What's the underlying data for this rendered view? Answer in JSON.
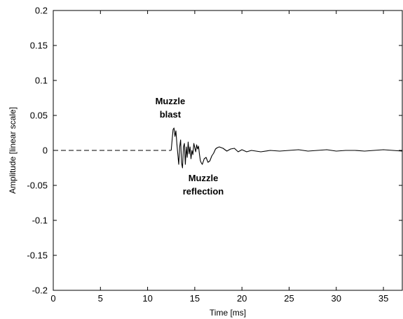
{
  "chart_data": {
    "type": "line",
    "title": "",
    "xlabel": "Time [ms]",
    "ylabel": "Amplitude [linear scale]",
    "xlim": [
      0,
      37
    ],
    "ylim": [
      -0.2,
      0.2
    ],
    "grid": false,
    "x_ticks": [
      0,
      5,
      10,
      15,
      20,
      25,
      30,
      35
    ],
    "x_tick_labels": [
      "0",
      "5",
      "10",
      "15",
      "20",
      "25",
      "30",
      "35"
    ],
    "y_ticks": [
      0.2,
      0.15,
      0.1,
      0.05,
      0,
      -0.05,
      -0.1,
      -0.15,
      -0.2
    ],
    "y_tick_labels": [
      "0.2",
      "0.15",
      "0.1",
      "0.05",
      "0",
      "-0.05",
      "-0.1",
      "-0.15",
      "-0.2"
    ],
    "annotations": [
      {
        "lines": [
          "Muzzle",
          "blast"
        ],
        "x": 12.4,
        "y": 0.066
      },
      {
        "lines": [
          "Muzzle",
          "reflection"
        ],
        "x": 15.9,
        "y": -0.044
      }
    ],
    "series": [
      {
        "style": "dashed",
        "color": "#000000",
        "x": [
          0,
          12.5
        ],
        "y": [
          0,
          0
        ]
      },
      {
        "style": "solid",
        "color": "#000000",
        "x": [
          12.5,
          12.7,
          12.8,
          12.9,
          13.0,
          13.1,
          13.2,
          13.3,
          13.4,
          13.5,
          13.6,
          13.7,
          13.8,
          13.9,
          14.0,
          14.1,
          14.2,
          14.3,
          14.4,
          14.5,
          14.6,
          14.7,
          14.8,
          14.9,
          15.0,
          15.1,
          15.2,
          15.3,
          15.4,
          15.5,
          15.6,
          15.7,
          15.8,
          15.9,
          16.0,
          16.2,
          16.4,
          16.6,
          16.8,
          17.0,
          17.2,
          17.4,
          17.6,
          17.8,
          18.0,
          18.4,
          18.8,
          19.2,
          19.6,
          20.0,
          20.5,
          21.0,
          22.0,
          23.0,
          24.0,
          25.0,
          26.0,
          27.0,
          28.0,
          29.0,
          30.0,
          31.0,
          32.0,
          33.0,
          34.0,
          35.0,
          36.0,
          37.0
        ],
        "y": [
          0,
          0.03,
          0.032,
          0.02,
          0.028,
          0.01,
          -0.005,
          -0.02,
          0.005,
          0.015,
          -0.018,
          -0.025,
          0.005,
          0.01,
          -0.02,
          0.005,
          -0.01,
          0.012,
          -0.005,
          0.005,
          -0.012,
          0.0,
          -0.006,
          0.01,
          0.004,
          -0.002,
          0.008,
          0.002,
          0.006,
          -0.006,
          -0.015,
          -0.018,
          -0.02,
          -0.016,
          -0.012,
          -0.01,
          -0.017,
          -0.015,
          -0.008,
          -0.004,
          0.002,
          0.004,
          0.005,
          0.004,
          0.003,
          -0.001,
          0.002,
          0.003,
          -0.002,
          0.001,
          -0.002,
          0.0,
          -0.002,
          0.0,
          -0.001,
          0.0,
          0.001,
          -0.001,
          0.0,
          0.001,
          -0.001,
          0.0,
          0.0,
          -0.001,
          0.0,
          0.001,
          0.0,
          -0.001
        ]
      }
    ]
  }
}
